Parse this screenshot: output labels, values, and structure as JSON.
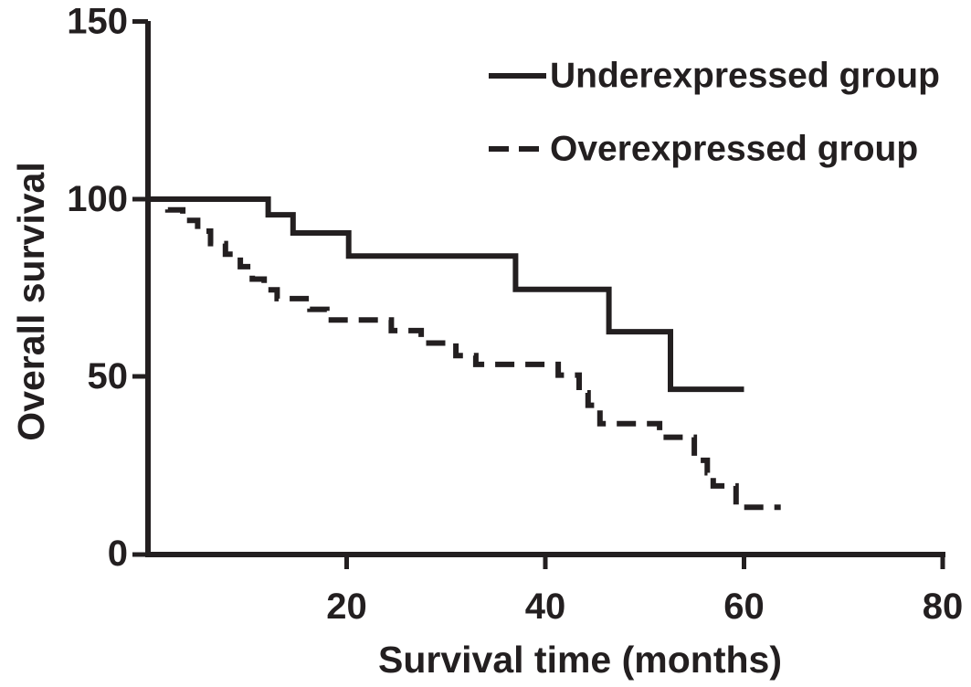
{
  "page": {
    "background": "#ffffff",
    "ink_color": "#231f20"
  },
  "chart_data": {
    "type": "line",
    "chart_style": "kaplan-meier-step",
    "title": "",
    "xlabel": "Survival time (months)",
    "ylabel": "Overall survival",
    "xlim": [
      0,
      80
    ],
    "ylim": [
      0,
      150
    ],
    "xticks": [
      "20",
      "40",
      "60",
      "80"
    ],
    "yticks": [
      "0",
      "50",
      "100",
      "150"
    ],
    "grid": false,
    "legend_position": "top-right-inside",
    "series": [
      {
        "name": "Underexpressed group",
        "line_style": "solid",
        "color": "#231f20",
        "points": [
          [
            0,
            100
          ],
          [
            12.1,
            100
          ],
          [
            12.1,
            95.6
          ],
          [
            14.6,
            95.6
          ],
          [
            14.6,
            90.5
          ],
          [
            20.2,
            90.5
          ],
          [
            20.2,
            84
          ],
          [
            37,
            84
          ],
          [
            37,
            74.6
          ],
          [
            46.4,
            74.6
          ],
          [
            46.4,
            62.7
          ],
          [
            52.6,
            62.7
          ],
          [
            52.6,
            46.5
          ],
          [
            60,
            46.5
          ]
        ]
      },
      {
        "name": "Overexpressed group",
        "line_style": "dashed",
        "color": "#231f20",
        "points": [
          [
            0,
            100
          ],
          [
            2,
            100
          ],
          [
            2,
            97
          ],
          [
            3.5,
            97
          ],
          [
            3.5,
            94
          ],
          [
            5,
            94
          ],
          [
            5,
            91
          ],
          [
            6.3,
            91
          ],
          [
            6.3,
            87.5
          ],
          [
            7.8,
            87.5
          ],
          [
            7.8,
            84.5
          ],
          [
            9.3,
            84.5
          ],
          [
            9.3,
            81
          ],
          [
            10.5,
            81
          ],
          [
            10.5,
            77.5
          ],
          [
            11.7,
            77.5
          ],
          [
            11.7,
            74.5
          ],
          [
            13,
            74.5
          ],
          [
            13,
            72
          ],
          [
            16.3,
            72
          ],
          [
            16.3,
            69
          ],
          [
            18,
            69
          ],
          [
            18,
            66
          ],
          [
            24.5,
            66
          ],
          [
            24.5,
            63
          ],
          [
            27.5,
            63
          ],
          [
            27.5,
            59.5
          ],
          [
            31,
            59.5
          ],
          [
            31,
            56
          ],
          [
            33,
            56
          ],
          [
            33,
            53.5
          ],
          [
            41.3,
            53.5
          ],
          [
            41.3,
            50.5
          ],
          [
            43.4,
            50.5
          ],
          [
            43.4,
            45.5
          ],
          [
            44.3,
            45.5
          ],
          [
            44.3,
            42
          ],
          [
            45.5,
            42
          ],
          [
            45.5,
            36.8
          ],
          [
            51.5,
            36.8
          ],
          [
            51.5,
            33
          ],
          [
            55,
            33
          ],
          [
            55,
            26.5
          ],
          [
            56.3,
            26.5
          ],
          [
            56.3,
            23
          ],
          [
            56.9,
            23
          ],
          [
            56.9,
            19.3
          ],
          [
            59.2,
            19.3
          ],
          [
            59.2,
            13.3
          ],
          [
            63.7,
            13.3
          ]
        ]
      }
    ]
  }
}
